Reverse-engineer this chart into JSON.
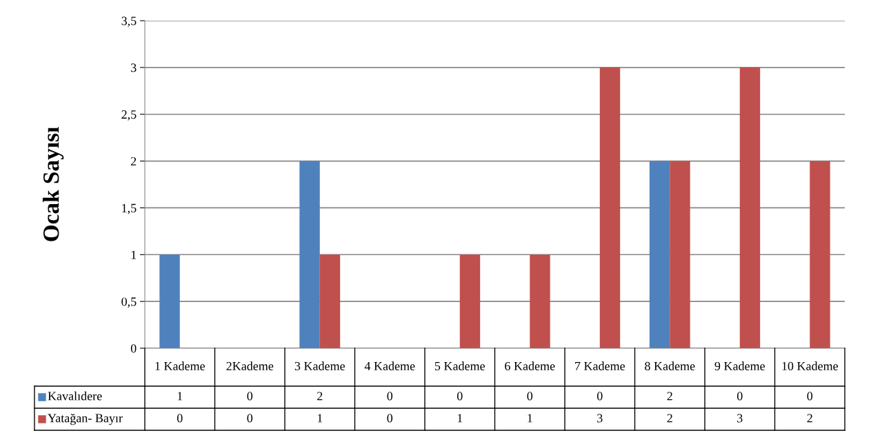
{
  "chart_data": {
    "type": "bar",
    "ylabel": "Ocak Sayısı",
    "categories": [
      "1 Kademe",
      "2Kademe",
      "3 Kademe",
      "4 Kademe",
      "5 Kademe",
      "6 Kademe",
      "7 Kademe",
      "8 Kademe",
      "9 Kademe",
      "10 Kademe"
    ],
    "series": [
      {
        "name": "Kavalıdere",
        "color": "#4f81bd",
        "values": [
          1,
          0,
          2,
          0,
          0,
          0,
          0,
          2,
          0,
          0
        ]
      },
      {
        "name": "Yatağan- Bayır",
        "color": "#c0504d",
        "values": [
          0,
          0,
          1,
          0,
          1,
          1,
          3,
          2,
          3,
          2
        ]
      }
    ],
    "ylim": [
      0,
      3.5
    ],
    "yticks": [
      0,
      {
        "value": 0.5,
        "label": "0,5"
      },
      1,
      {
        "value": 1.5,
        "label": "1,5"
      },
      2,
      {
        "value": 2.5,
        "label": "2,5"
      },
      3,
      {
        "value": 3.5,
        "label": "3,5"
      }
    ],
    "grid": "y",
    "legend": "bottom",
    "data_labels": true
  }
}
